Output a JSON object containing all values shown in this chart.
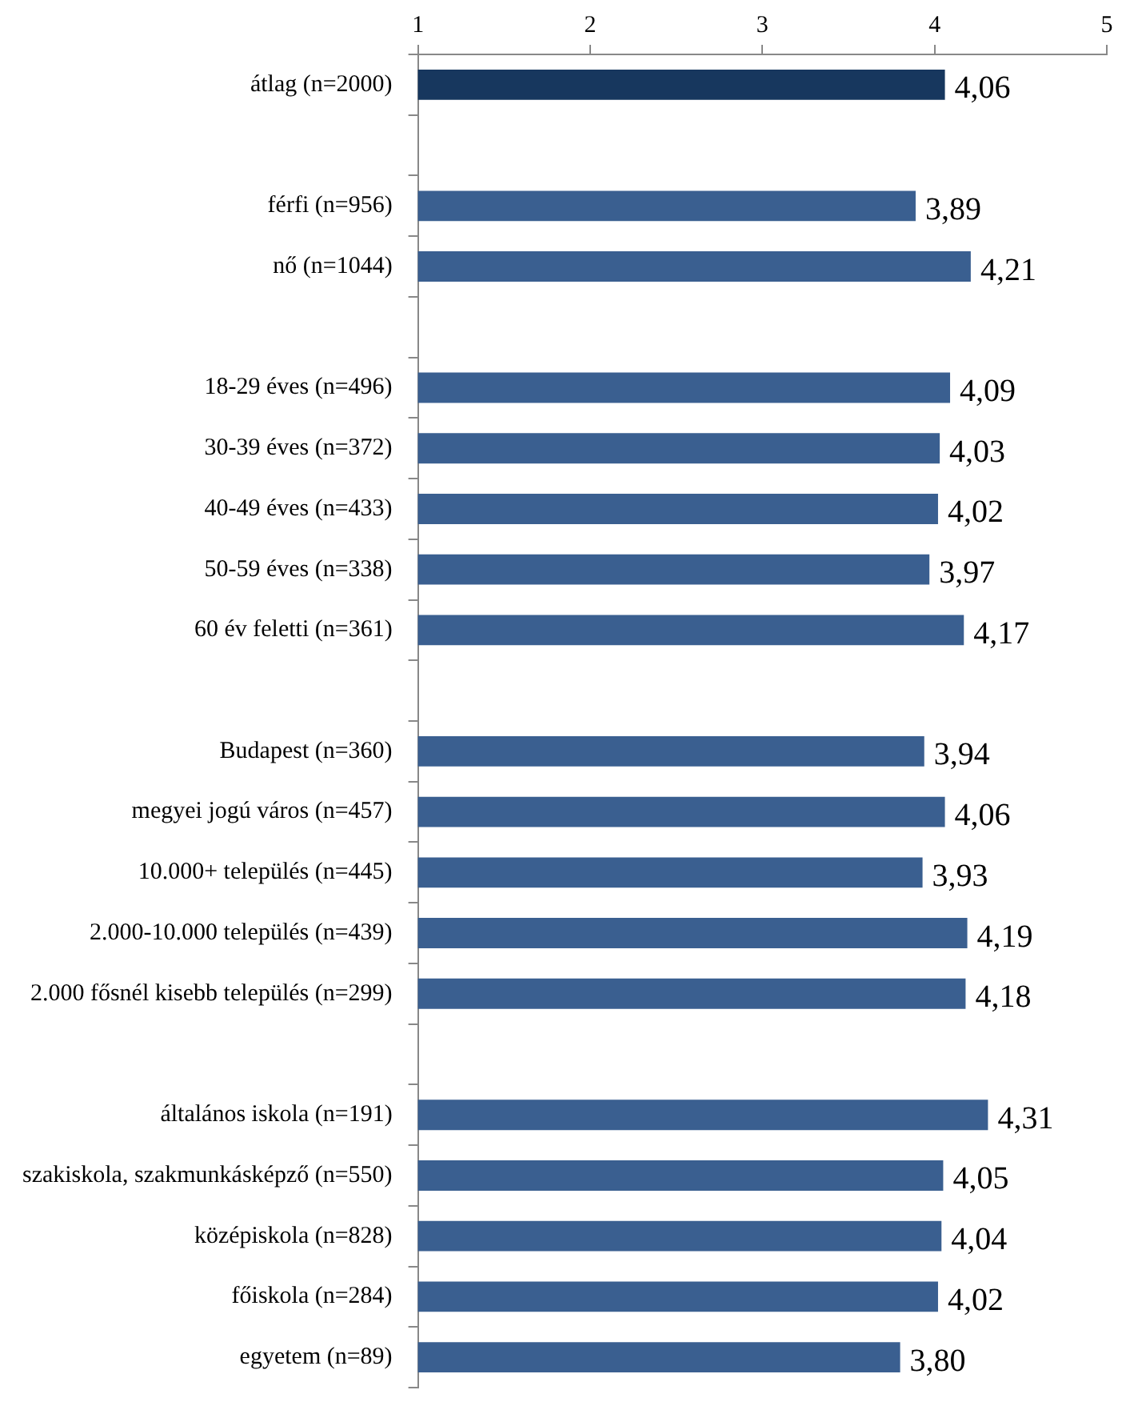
{
  "chart_data": {
    "type": "bar",
    "orientation": "horizontal",
    "categories": [
      "átlag (n=2000)",
      null,
      "férfi (n=956)",
      "nő (n=1044)",
      null,
      "18-29 éves (n=496)",
      "30-39 éves (n=372)",
      "40-49 éves (n=433)",
      "50-59 éves (n=338)",
      "60 év feletti (n=361)",
      null,
      "Budapest (n=360)",
      "megyei jogú város (n=457)",
      "10.000+ település (n=445)",
      "2.000-10.000 település (n=439)",
      "2.000 fősnél kisebb település (n=299)",
      null,
      "általános iskola (n=191)",
      "szakiskola, szakmunkásképző (n=550)",
      "középiskola (n=828)",
      "főiskola (n=284)",
      "egyetem (n=89)"
    ],
    "values": [
      4.06,
      null,
      3.89,
      4.21,
      null,
      4.09,
      4.03,
      4.02,
      3.97,
      4.17,
      null,
      3.94,
      4.06,
      3.93,
      4.19,
      4.18,
      null,
      4.31,
      4.05,
      4.04,
      4.02,
      3.8
    ],
    "value_labels": [
      "4,06",
      null,
      "3,89",
      "4,21",
      null,
      "4,09",
      "4,03",
      "4,02",
      "3,97",
      "4,17",
      null,
      "3,94",
      "4,06",
      "3,93",
      "4,19",
      "4,18",
      null,
      "4,31",
      "4,05",
      "4,04",
      "4,02",
      "3,80"
    ],
    "colors": [
      "#17375e",
      null,
      "#3a5f90",
      "#3a5f90",
      null,
      "#3a5f90",
      "#3a5f90",
      "#3a5f90",
      "#3a5f90",
      "#3a5f90",
      null,
      "#3a5f90",
      "#3a5f90",
      "#3a5f90",
      "#3a5f90",
      "#3a5f90",
      null,
      "#3a5f90",
      "#3a5f90",
      "#3a5f90",
      "#3a5f90",
      "#3a5f90"
    ],
    "xlim": [
      1,
      5
    ],
    "xticks": [
      1,
      2,
      3,
      4,
      5
    ],
    "grid": false,
    "legend": false
  }
}
